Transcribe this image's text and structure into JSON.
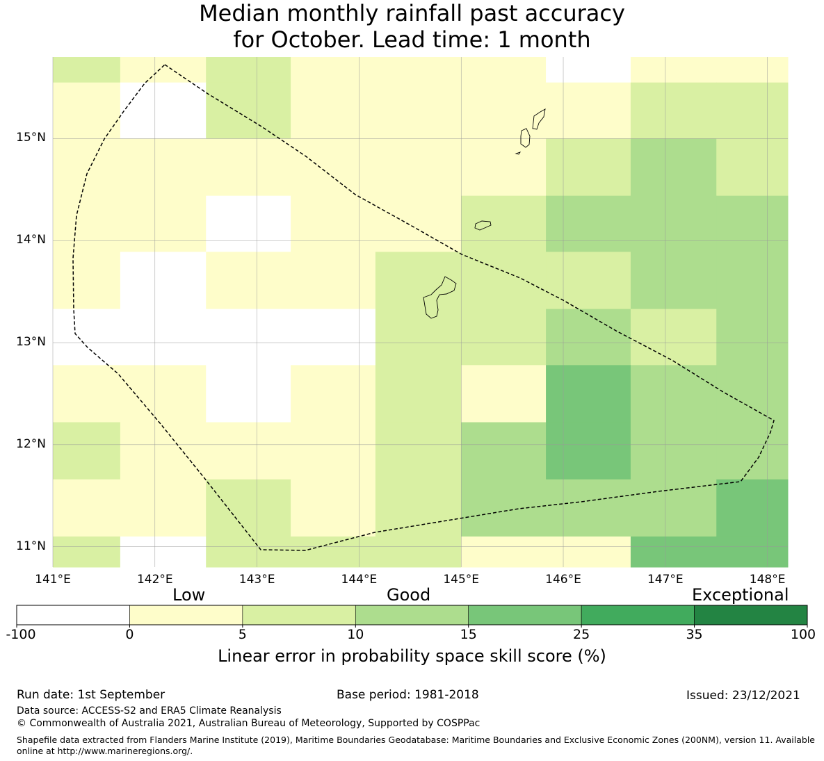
{
  "title": {
    "line1": "Median monthly rainfall past accuracy",
    "line2": "for October. Lead time: 1 month"
  },
  "map": {
    "lat_labels": [
      "15°N",
      "14°N",
      "13°N",
      "12°N",
      "11°N"
    ],
    "lon_labels": [
      "141°E",
      "142°E",
      "143°E",
      "144°E",
      "145°E",
      "146°E",
      "147°E",
      "148°E"
    ],
    "lon_range": [
      141.0,
      148.2
    ],
    "lat_range": [
      10.8,
      15.8
    ],
    "grid_lons": [
      141,
      142,
      143,
      144,
      145,
      146,
      147,
      148
    ],
    "grid_lats": [
      11,
      12,
      13,
      14,
      15
    ],
    "colors": {
      "a": "#ffffff",
      "b": "#fefdca",
      "c": "#d9f0a3",
      "d": "#addd8e",
      "e": "#78c679",
      "f": "#41ab5d",
      "g": "#238443"
    },
    "cell_lons": [
      141.0,
      141.66,
      142.5,
      143.33,
      144.16,
      145.0,
      145.83,
      146.66,
      147.5,
      148.2
    ],
    "cell_lats": [
      15.8,
      15.55,
      15.0,
      14.44,
      13.89,
      13.33,
      12.78,
      12.22,
      11.66,
      11.1,
      10.8
    ],
    "cells": [
      [
        "c",
        "b",
        "c",
        "b",
        "b",
        "b",
        "a",
        "b",
        "b"
      ],
      [
        "b",
        "a",
        "c",
        "b",
        "b",
        "b",
        "b",
        "c",
        "c"
      ],
      [
        "b",
        "b",
        "b",
        "b",
        "b",
        "b",
        "c",
        "d",
        "c"
      ],
      [
        "b",
        "b",
        "a",
        "b",
        "b",
        "c",
        "d",
        "d",
        "d"
      ],
      [
        "b",
        "a",
        "b",
        "b",
        "c",
        "c",
        "c",
        "d",
        "d"
      ],
      [
        "a",
        "a",
        "a",
        "a",
        "c",
        "c",
        "d",
        "c",
        "d"
      ],
      [
        "b",
        "b",
        "a",
        "b",
        "c",
        "b",
        "e",
        "d",
        "d"
      ],
      [
        "c",
        "b",
        "b",
        "b",
        "c",
        "d",
        "e",
        "d",
        "d"
      ],
      [
        "b",
        "b",
        "c",
        "b",
        "c",
        "d",
        "d",
        "d",
        "e"
      ],
      [
        "c",
        "a",
        "c",
        "c",
        "c",
        "b",
        "b",
        "e",
        "e"
      ]
    ]
  },
  "colorbar": {
    "category_labels": [
      "Low",
      "Good",
      "Exceptional"
    ],
    "ticks": [
      "-100",
      "0",
      "5",
      "10",
      "15",
      "25",
      "35",
      "100"
    ],
    "colors": [
      "#ffffff",
      "#fefdca",
      "#d9f0a3",
      "#addd8e",
      "#78c679",
      "#41ab5d",
      "#238443"
    ],
    "label": "Linear error in probability space skill score (%)"
  },
  "footer": {
    "run_date": "Run date: 1st September",
    "base_period": "Base period: 1981-2018",
    "issued": "Issued: 23/12/2021",
    "data_source": "Data source: ACCESS-S2 and ERA5 Climate Reanalysis",
    "copyright": "© Commonwealth of Australia 2021, Australian Bureau of Meteorology, Supported by COSPPac",
    "shapefile": "Shapefile data extracted from Flanders Marine Institute (2019), Maritime Boundaries Geodatabase: Maritime Boundaries and Exclusive Economic Zones (200NM), version 11. Available online at http://www.marineregions.org/."
  }
}
